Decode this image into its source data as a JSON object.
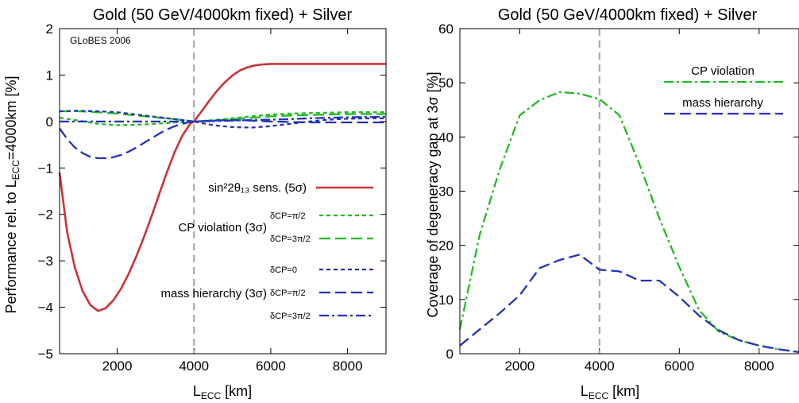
{
  "chart_data": [
    {
      "type": "line",
      "title": "Gold (50 GeV/4000km fixed) + Silver",
      "xlabel_main": "L",
      "xlabel_sub": "ECC",
      "xlabel_unit": "[km]",
      "ylabel_pre": "Performance rel. to L",
      "ylabel_sub": "ECC",
      "ylabel_post": "=4000km [%]",
      "watermark": "GLoBES 2006",
      "xlim": [
        500,
        9000
      ],
      "ylim": [
        -5,
        2
      ],
      "xticks": [
        "2000",
        "4000",
        "6000",
        "8000"
      ],
      "yticks": [
        "−5",
        "−4",
        "−3",
        "−2",
        "−1",
        "0",
        "1",
        "2"
      ],
      "reference_line_x": 4000,
      "legend_group_labels": {
        "theta13": "sin²2θ₁₃ sens. (5σ)",
        "cp": "CP violation (3σ)",
        "mh": "mass hierarchy (3σ)"
      },
      "series": [
        {
          "name": "sin²2θ₁₃ sens. (5σ)",
          "color": "#cc3333",
          "dash": "solid",
          "x": [
            500,
            700,
            900,
            1100,
            1300,
            1500,
            1700,
            1900,
            2100,
            2300,
            2500,
            2700,
            2900,
            3100,
            3300,
            3500,
            3700,
            3900,
            4000,
            4200,
            4400,
            4600,
            4800,
            5000,
            5200,
            5400,
            5600,
            5800,
            6000,
            6500,
            7000,
            7500,
            8000,
            8500,
            9000
          ],
          "y": [
            -1.1,
            -2.4,
            -3.15,
            -3.65,
            -3.95,
            -4.08,
            -4.02,
            -3.85,
            -3.6,
            -3.28,
            -2.9,
            -2.48,
            -2.03,
            -1.55,
            -1.08,
            -0.65,
            -0.3,
            -0.05,
            0,
            0.22,
            0.45,
            0.66,
            0.84,
            0.99,
            1.1,
            1.17,
            1.21,
            1.23,
            1.24,
            1.24,
            1.24,
            1.24,
            1.24,
            1.24,
            1.24
          ]
        },
        {
          "name": "δCP=π/2",
          "group": "cp",
          "color": "#22bb22",
          "dash": "short",
          "x": [
            500,
            1000,
            1500,
            2000,
            2500,
            3000,
            3500,
            4000,
            4500,
            5000,
            5500,
            6000,
            6500,
            7000,
            7500,
            8000,
            8500,
            9000
          ],
          "y": [
            0.08,
            0.02,
            -0.05,
            -0.08,
            -0.07,
            -0.05,
            -0.02,
            0,
            0.03,
            0.07,
            0.11,
            0.15,
            0.17,
            0.18,
            0.19,
            0.2,
            0.2,
            0.2
          ]
        },
        {
          "name": "δCP=3π/2",
          "group": "cp",
          "color": "#22bb22",
          "dash": "long",
          "x": [
            500,
            1000,
            1500,
            2000,
            2500,
            3000,
            3500,
            4000,
            4500,
            5000,
            5500,
            6000,
            6500,
            7000,
            7500,
            8000,
            8500,
            9000
          ],
          "y": [
            0.22,
            0.22,
            0.2,
            0.17,
            0.13,
            0.09,
            0.05,
            0,
            0.02,
            0.05,
            0.08,
            0.11,
            0.13,
            0.14,
            0.15,
            0.16,
            0.16,
            0.16
          ]
        },
        {
          "name": "δCP=0",
          "group": "mh",
          "color": "#2233bb",
          "dash": "short",
          "x": [
            500,
            1000,
            1500,
            2000,
            2500,
            3000,
            3500,
            4000,
            4500,
            5000,
            5500,
            6000,
            6500,
            7000,
            7500,
            8000,
            8500,
            9000
          ],
          "y": [
            0.22,
            0.23,
            0.22,
            0.2,
            0.15,
            0.1,
            0.05,
            0,
            -0.08,
            -0.12,
            -0.13,
            -0.1,
            -0.05,
            0,
            0.04,
            0.06,
            0.07,
            0.07
          ]
        },
        {
          "name": "δCP=π/2",
          "group": "mh",
          "color": "#2233bb",
          "dash": "long",
          "x": [
            500,
            700,
            900,
            1100,
            1300,
            1500,
            1700,
            1900,
            2100,
            2300,
            2500,
            2700,
            2900,
            3100,
            3300,
            3500,
            3700,
            3900,
            4000,
            4500,
            5000,
            5500,
            6000,
            6500,
            7000,
            7500,
            8000,
            8500,
            9000
          ],
          "y": [
            -0.15,
            -0.38,
            -0.56,
            -0.68,
            -0.76,
            -0.79,
            -0.79,
            -0.77,
            -0.72,
            -0.65,
            -0.56,
            -0.46,
            -0.36,
            -0.26,
            -0.17,
            -0.1,
            -0.05,
            -0.01,
            0,
            0.02,
            0.03,
            0.02,
            0,
            -0.01,
            -0.02,
            -0.02,
            -0.02,
            -0.02,
            -0.02
          ]
        },
        {
          "name": "δCP=3π/2",
          "group": "mh",
          "color": "#2233bb",
          "dash": "dashdot",
          "x": [
            500,
            1000,
            1500,
            2000,
            2500,
            3000,
            3500,
            4000,
            4500,
            5000,
            5500,
            6000,
            6500,
            7000,
            7500,
            8000,
            8500,
            9000
          ],
          "y": [
            0,
            0,
            0,
            0,
            0,
            0,
            0,
            0,
            0.01,
            0.02,
            0.03,
            0.04,
            0.05,
            0.07,
            0.08,
            0.09,
            0.1,
            0.1
          ]
        }
      ]
    },
    {
      "type": "line",
      "title": "Gold (50 GeV/4000km fixed) + Silver",
      "xlabel_main": "L",
      "xlabel_sub": "ECC",
      "xlabel_unit": "[km]",
      "ylabel": "Coverage of degeneracy gap at 3σ [%]",
      "xlim": [
        500,
        9000
      ],
      "ylim": [
        0,
        60
      ],
      "xticks": [
        "2000",
        "4000",
        "6000",
        "8000"
      ],
      "yticks": [
        "0",
        "10",
        "20",
        "30",
        "40",
        "50",
        "60"
      ],
      "reference_line_x": 4000,
      "series": [
        {
          "name": "CP violation",
          "color": "#22bb22",
          "dash": "dashdot",
          "x": [
            500,
            1000,
            1500,
            2000,
            2500,
            3000,
            3500,
            4000,
            4500,
            5000,
            5500,
            6000,
            6500,
            7000,
            7500,
            8000,
            8500,
            9000
          ],
          "y": [
            4.5,
            22,
            34,
            44,
            46.8,
            48.3,
            48,
            47,
            44,
            35,
            25,
            16,
            8,
            4,
            2.5,
            1.5,
            0.8,
            0.3
          ]
        },
        {
          "name": "mass hierarchy",
          "color": "#2233bb",
          "dash": "long",
          "x": [
            500,
            1000,
            1500,
            2000,
            2500,
            3000,
            3500,
            4000,
            4500,
            5000,
            5500,
            6000,
            6500,
            7000,
            7500,
            8000,
            8500,
            9000
          ],
          "y": [
            1.5,
            4.5,
            7.5,
            10.8,
            15.8,
            17.3,
            18.3,
            15.5,
            15.2,
            13.5,
            13.5,
            10.5,
            7,
            4.3,
            2.5,
            1.5,
            0.8,
            0.3
          ]
        }
      ]
    }
  ]
}
